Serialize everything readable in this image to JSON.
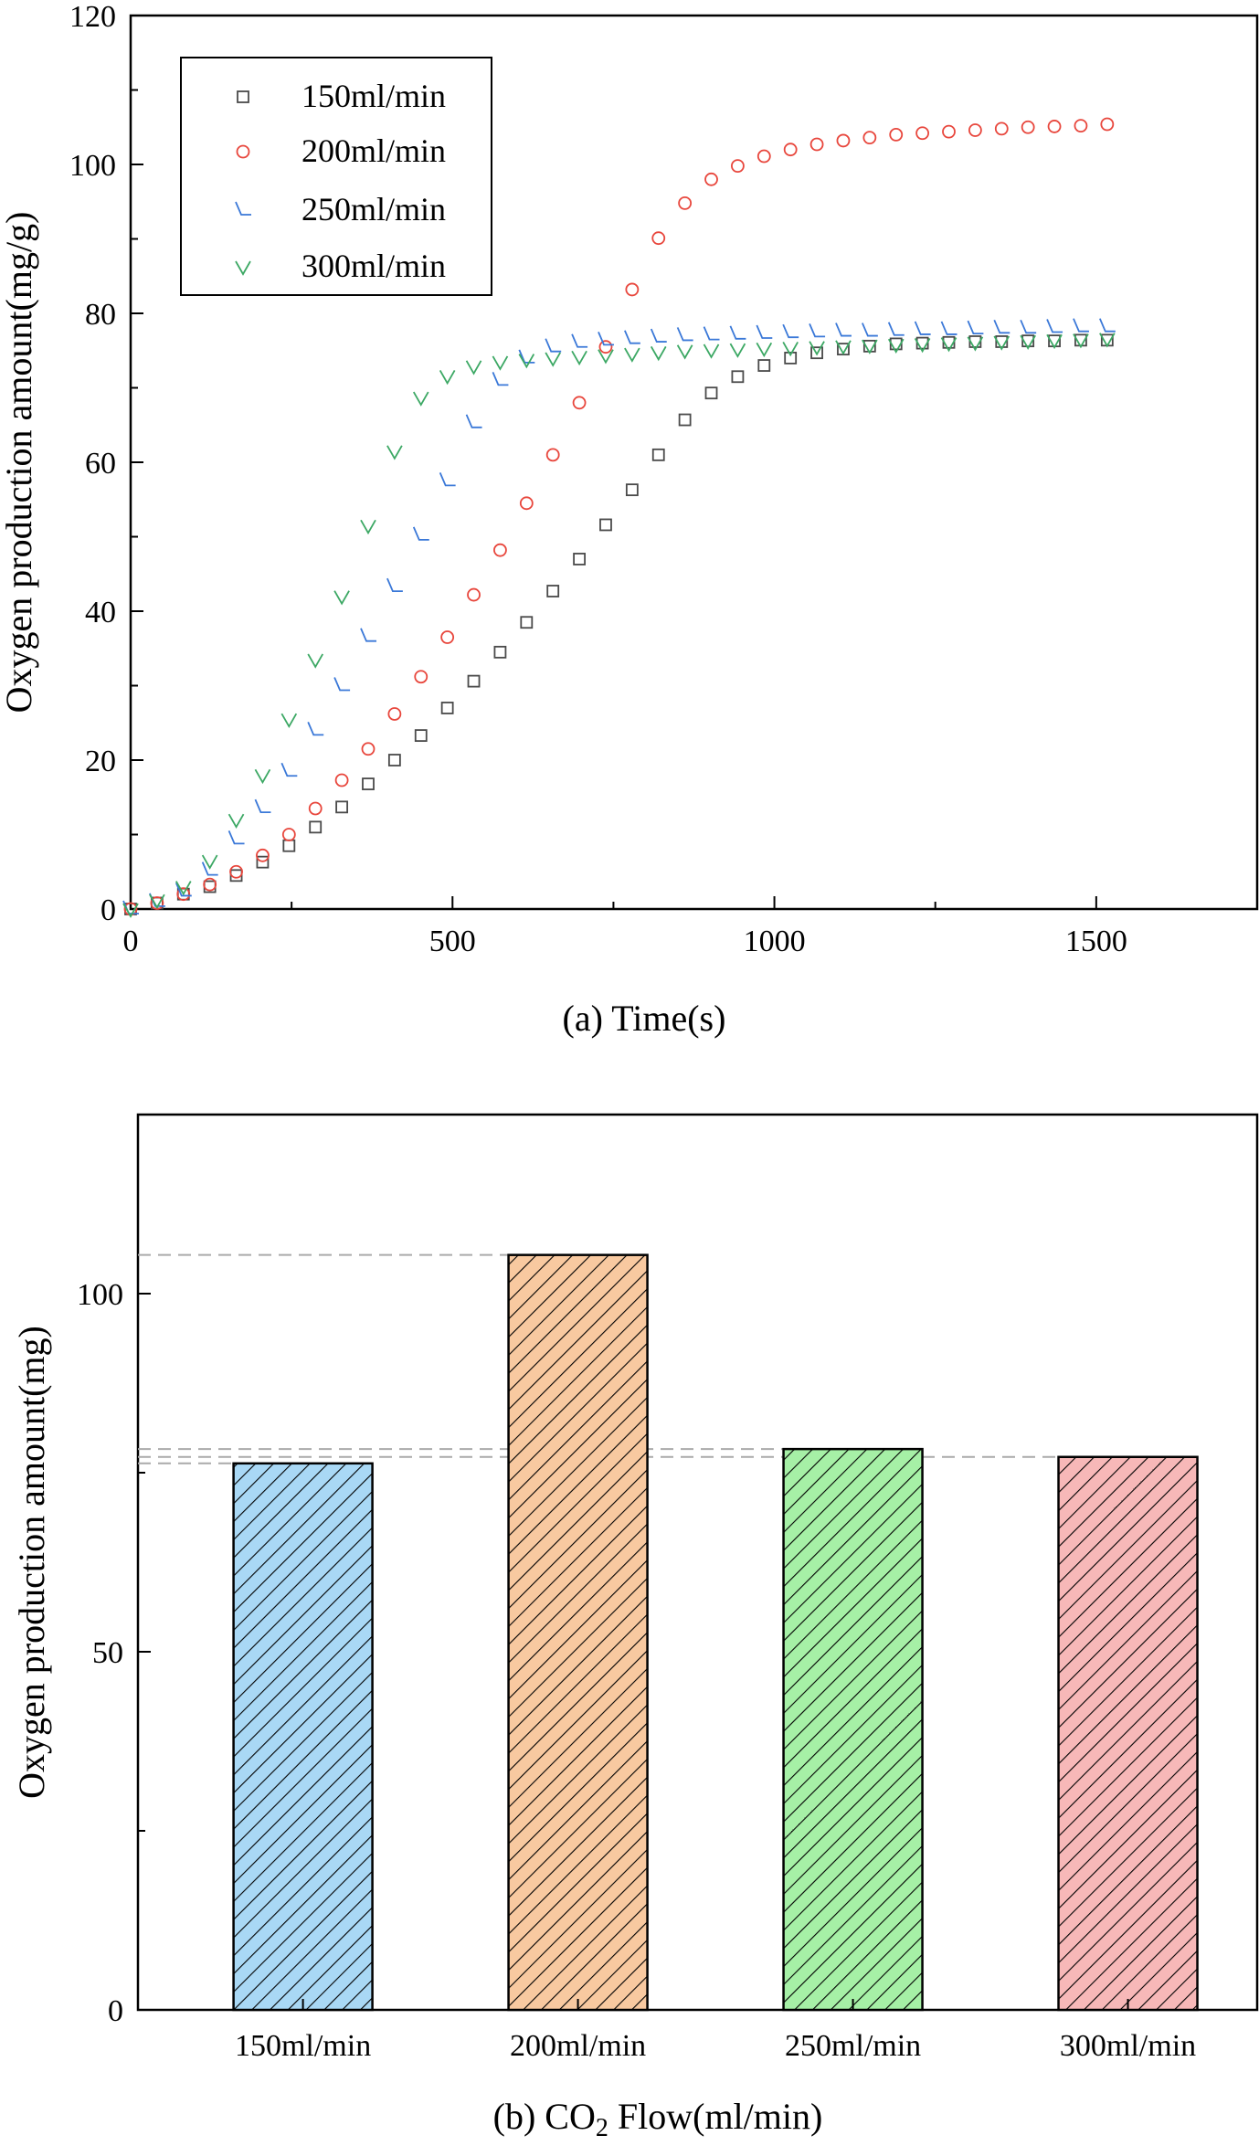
{
  "chart_data": [
    {
      "type": "scatter",
      "panel": "a",
      "xlabel": "(a)  Time(s)",
      "ylabel": "Oxygen production amount(mg/g)",
      "xlim": [
        0,
        1750
      ],
      "ylim": [
        0,
        120
      ],
      "xticks": [
        0,
        500,
        1000,
        1500
      ],
      "yticks": [
        0,
        20,
        40,
        60,
        80,
        100,
        120
      ],
      "legend_position": "top-left",
      "series": [
        {
          "name": "150ml/min",
          "marker": "square",
          "color": "#4a4a4a",
          "x": [
            0,
            41,
            82,
            123,
            164,
            205,
            246,
            287,
            328,
            369,
            410,
            451,
            492,
            533,
            574,
            615,
            656,
            697,
            738,
            779,
            820,
            861,
            902,
            943,
            984,
            1025,
            1066,
            1107,
            1148,
            1189,
            1230,
            1271,
            1312,
            1353,
            1394,
            1435,
            1476,
            1517
          ],
          "y": [
            0,
            0.8,
            2,
            3,
            4.5,
            6.3,
            8.5,
            11,
            13.7,
            16.8,
            20,
            23.3,
            27,
            30.6,
            34.5,
            38.5,
            42.7,
            47,
            51.6,
            56.3,
            61,
            65.7,
            69.3,
            71.5,
            73,
            74,
            74.7,
            75.2,
            75.6,
            75.9,
            76,
            76.1,
            76.2,
            76.2,
            76.3,
            76.3,
            76.4,
            76.4
          ]
        },
        {
          "name": "200ml/min",
          "marker": "circle",
          "color": "#e8463c",
          "x": [
            0,
            41,
            82,
            123,
            164,
            205,
            246,
            287,
            328,
            369,
            410,
            451,
            492,
            533,
            574,
            615,
            656,
            697,
            738,
            779,
            820,
            861,
            902,
            943,
            984,
            1025,
            1066,
            1107,
            1148,
            1189,
            1230,
            1271,
            1312,
            1353,
            1394,
            1435,
            1476,
            1517
          ],
          "y": [
            0,
            0.8,
            2,
            3.3,
            5,
            7.2,
            10,
            13.5,
            17.3,
            21.5,
            26.2,
            31.2,
            36.5,
            42.2,
            48.2,
            54.5,
            61,
            68,
            75.5,
            83.2,
            90.1,
            94.8,
            98,
            99.8,
            101.1,
            102,
            102.7,
            103.2,
            103.6,
            104,
            104.2,
            104.4,
            104.6,
            104.8,
            105,
            105.1,
            105.2,
            105.4
          ]
        },
        {
          "name": "250ml/min",
          "marker": "triangle-left",
          "color": "#3a78d8",
          "x": [
            0,
            41,
            82,
            123,
            164,
            205,
            246,
            287,
            328,
            369,
            410,
            451,
            492,
            533,
            574,
            615,
            656,
            697,
            738,
            779,
            820,
            861,
            902,
            943,
            984,
            1025,
            1066,
            1107,
            1148,
            1189,
            1230,
            1271,
            1312,
            1353,
            1394,
            1435,
            1476,
            1517
          ],
          "y": [
            0,
            1,
            2.4,
            5.2,
            9.4,
            13.6,
            18.5,
            24,
            30,
            36.6,
            43.3,
            50.2,
            57.5,
            65.3,
            71,
            74,
            75.5,
            76.1,
            76.4,
            76.6,
            76.8,
            77,
            77.1,
            77.2,
            77.3,
            77.4,
            77.5,
            77.6,
            77.6,
            77.7,
            77.8,
            77.8,
            77.9,
            78,
            78,
            78.1,
            78.2,
            78.2
          ]
        },
        {
          "name": "300ml/min",
          "marker": "triangle-down",
          "color": "#3ca864",
          "x": [
            0,
            41,
            82,
            123,
            164,
            205,
            246,
            287,
            328,
            369,
            410,
            451,
            492,
            533,
            574,
            615,
            656,
            697,
            738,
            779,
            820,
            861,
            902,
            943,
            984,
            1025,
            1066,
            1107,
            1148,
            1189,
            1230,
            1271,
            1312,
            1353,
            1394,
            1435,
            1476,
            1517
          ],
          "y": [
            0,
            1.2,
            3,
            6.5,
            12,
            18,
            25.5,
            33.5,
            42,
            51.5,
            61.5,
            68.7,
            71.6,
            72.9,
            73.5,
            73.8,
            74,
            74.2,
            74.4,
            74.6,
            74.8,
            75,
            75.1,
            75.2,
            75.3,
            75.4,
            75.5,
            75.6,
            75.7,
            75.8,
            75.9,
            76,
            76.1,
            76.2,
            76.3,
            76.4,
            76.5,
            76.6
          ]
        }
      ]
    },
    {
      "type": "bar",
      "panel": "b",
      "xlabel_prefix": "(b)  CO",
      "xlabel_sub": "2",
      "xlabel_suffix": " Flow(ml/min)",
      "ylabel": "Oxygen production amount(mg)",
      "ylim": [
        0,
        125
      ],
      "yticks": [
        0,
        50,
        100
      ],
      "categories": [
        "150ml/min",
        "200ml/min",
        "250ml/min",
        "300ml/min"
      ],
      "values": [
        76.3,
        105.4,
        78.3,
        77.2
      ],
      "fill_colors": [
        "#a9d8f5",
        "#f8c9a0",
        "#a6f0a6",
        "#f7b8b8"
      ],
      "hatch": "diagonal",
      "reference_lines": [
        105.4,
        78.3,
        77.2,
        76.3
      ]
    }
  ]
}
